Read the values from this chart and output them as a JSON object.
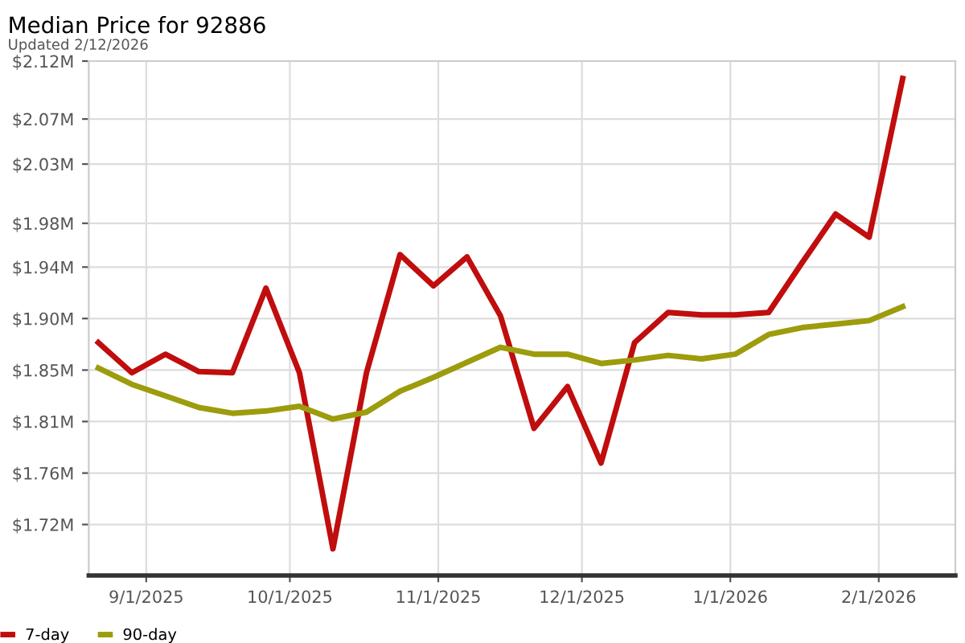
{
  "chart_data": {
    "type": "line",
    "title": "Median Price for 92886",
    "subtitle": "Updated 2/12/2026",
    "x": [
      "2025-08-22",
      "2025-08-29",
      "2025-09-05",
      "2025-09-12",
      "2025-09-19",
      "2025-09-26",
      "2025-10-03",
      "2025-10-10",
      "2025-10-17",
      "2025-10-24",
      "2025-10-31",
      "2025-11-07",
      "2025-11-14",
      "2025-11-21",
      "2025-11-28",
      "2025-12-05",
      "2025-12-12",
      "2025-12-19",
      "2025-12-26",
      "2026-01-02",
      "2026-01-09",
      "2026-01-16",
      "2026-01-23",
      "2026-01-30",
      "2026-02-06"
    ],
    "series": [
      {
        "name": "7-day",
        "color": "#c00d0d",
        "values": [
          1.877,
          1.851,
          1.867,
          1.852,
          1.851,
          1.924,
          1.851,
          1.699,
          1.851,
          1.953,
          1.926,
          1.951,
          1.9,
          1.803,
          1.839,
          1.773,
          1.877,
          1.903,
          1.901,
          1.901,
          1.903,
          1.946,
          1.988,
          1.968,
          2.105
        ]
      },
      {
        "name": "90-day",
        "color": "#9c9c0c",
        "values": [
          1.855,
          1.841,
          1.831,
          1.821,
          1.816,
          1.818,
          1.822,
          1.811,
          1.817,
          1.835,
          1.847,
          1.86,
          1.873,
          1.867,
          1.867,
          1.859,
          1.862,
          1.866,
          1.863,
          1.867,
          1.884,
          1.89,
          1.893,
          1.896,
          1.908
        ]
      }
    ],
    "xlim": [
      "2025-08-20",
      "2026-02-17"
    ],
    "xticks": [
      {
        "value": "2025-09-01",
        "label": "9/1/2025"
      },
      {
        "value": "2025-10-01",
        "label": "10/1/2025"
      },
      {
        "value": "2025-11-01",
        "label": "11/1/2025"
      },
      {
        "value": "2025-12-01",
        "label": "12/1/2025"
      },
      {
        "value": "2026-01-01",
        "label": "1/1/2026"
      },
      {
        "value": "2026-02-01",
        "label": "2/1/2026"
      }
    ],
    "ylim": [
      1.676,
      2.12
    ],
    "yticks": [
      {
        "value": 1.72,
        "label": "$1.72M"
      },
      {
        "value": 1.7644,
        "label": "$1.76M"
      },
      {
        "value": 1.8089,
        "label": "$1.81M"
      },
      {
        "value": 1.8533,
        "label": "$1.85M"
      },
      {
        "value": 1.8978,
        "label": "$1.90M"
      },
      {
        "value": 1.9422,
        "label": "$1.94M"
      },
      {
        "value": 1.98,
        "label": "$1.98M"
      },
      {
        "value": 2.0311,
        "label": "$2.03M"
      },
      {
        "value": 2.07,
        "label": "$2.07M"
      },
      {
        "value": 2.12,
        "label": "$2.12M"
      }
    ],
    "grid": true,
    "legend": "bottom left",
    "marker": "none",
    "line_style": "solid"
  }
}
